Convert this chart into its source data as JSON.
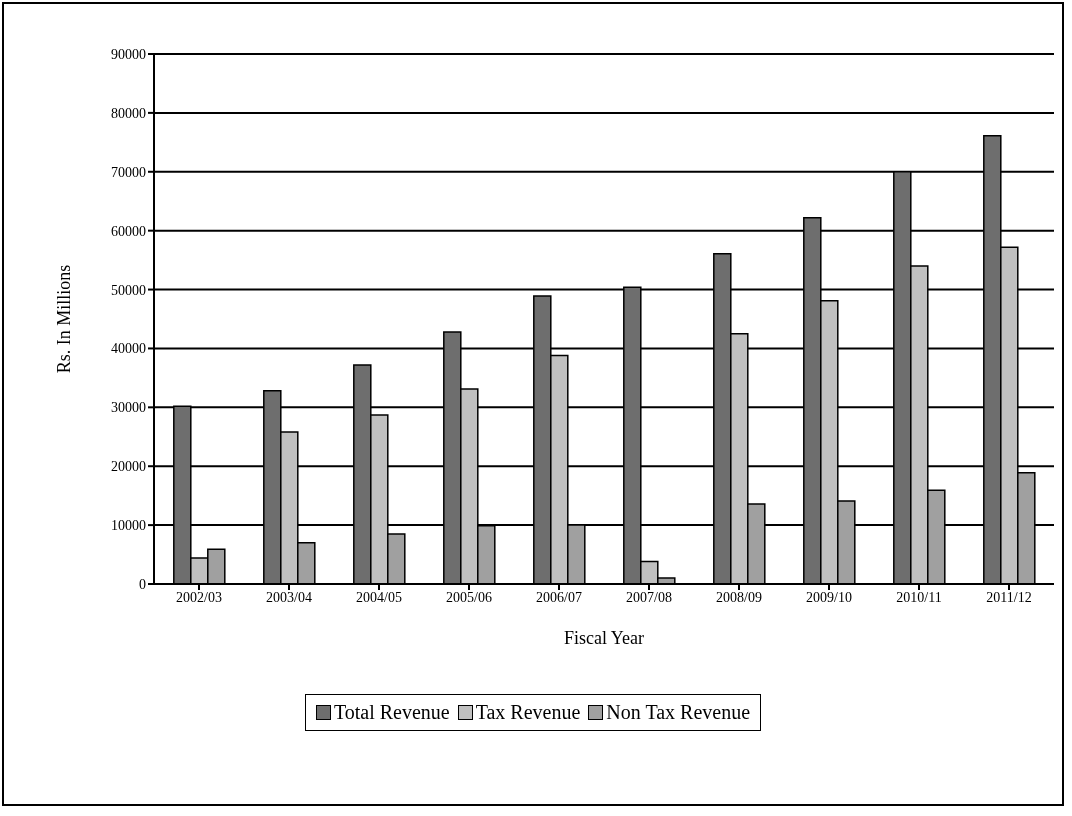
{
  "chart_data": {
    "type": "bar",
    "xlabel": "Fiscal Year",
    "ylabel": "Rs. In Millions",
    "categories": [
      "2002/03",
      "2003/04",
      "2004/05",
      "2005/06",
      "2006/07",
      "2007/08",
      "2008/09",
      "2009/10",
      "2010/11",
      "2011/12"
    ],
    "series": [
      {
        "name": "Total Revenue",
        "color": "#6e6e6e",
        "values": [
          30200,
          32800,
          37200,
          42800,
          48900,
          50400,
          56100,
          62200,
          70000,
          76100
        ]
      },
      {
        "name": "Tax Revenue",
        "color": "#c0c0c0",
        "values": [
          4400,
          25800,
          28700,
          33100,
          38800,
          3800,
          42500,
          48100,
          54000,
          57200
        ]
      },
      {
        "name": "Non Tax Revenue",
        "color": "#a0a0a0",
        "values": [
          5900,
          7000,
          8500,
          9900,
          10000,
          1000,
          13600,
          14100,
          15900,
          18900
        ]
      }
    ],
    "ylim": [
      0,
      90000
    ],
    "yticks": [
      0,
      10000,
      20000,
      30000,
      40000,
      50000,
      60000,
      70000,
      80000,
      90000
    ],
    "grid": "y",
    "legend": "bottom"
  }
}
